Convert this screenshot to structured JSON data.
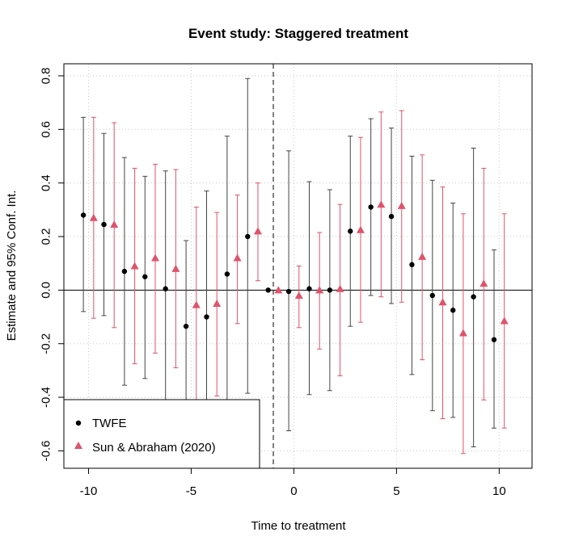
{
  "chart_data": {
    "type": "scatter",
    "title": "Event study: Staggered treatment",
    "xlabel": "Time to treatment",
    "ylabel": "Estimate and 95% Conf. Int.",
    "xlim": [
      -11.2,
      11.6
    ],
    "ylim": [
      -0.665,
      0.845
    ],
    "xticks": [
      -10,
      -5,
      0,
      5,
      10
    ],
    "xtick_labels": [
      "-10",
      "-5",
      "0",
      "5",
      "10"
    ],
    "yticks": [
      -0.6,
      -0.4,
      -0.2,
      0.0,
      0.2,
      0.4,
      0.6,
      0.8
    ],
    "ytick_labels": [
      "-0.6",
      "-0.4",
      "-0.2",
      "0.0",
      "0.2",
      "0.4",
      "0.6",
      "0.8"
    ],
    "grid": true,
    "reference_hline": 0,
    "reference_vline": -1,
    "legend_position": "bottom-left",
    "series": [
      {
        "name": "TWFE",
        "color": "#000000",
        "whisker_color": "#444444",
        "marker": "circle",
        "x": [
          -10.25,
          -9.25,
          -8.25,
          -7.25,
          -6.25,
          -5.25,
          -4.25,
          -3.25,
          -2.25,
          -1.25,
          -0.25,
          0.75,
          1.75,
          2.75,
          3.75,
          4.75,
          5.75,
          6.75,
          7.75,
          8.75,
          9.75
        ],
        "y": [
          0.28,
          0.245,
          0.07,
          0.05,
          0.005,
          -0.135,
          -0.1,
          0.06,
          0.2,
          0.0,
          -0.005,
          0.005,
          0.0,
          0.22,
          0.31,
          0.275,
          0.095,
          -0.02,
          -0.075,
          -0.025,
          -0.185
        ],
        "lower": [
          -0.08,
          -0.095,
          -0.355,
          -0.33,
          -0.44,
          -0.46,
          -0.56,
          -0.45,
          -0.385,
          null,
          -0.525,
          -0.39,
          -0.375,
          -0.135,
          -0.02,
          -0.05,
          -0.315,
          -0.45,
          -0.475,
          -0.585,
          -0.515
        ],
        "upper": [
          0.645,
          0.585,
          0.495,
          0.425,
          0.445,
          0.185,
          0.37,
          0.575,
          0.79,
          null,
          0.52,
          0.405,
          0.375,
          0.575,
          0.64,
          0.605,
          0.5,
          0.41,
          0.325,
          0.53,
          0.15
        ]
      },
      {
        "name": "Sun & Abraham (2020)",
        "color": "#df536b",
        "whisker_color": "#df536b",
        "marker": "triangle",
        "x": [
          -9.75,
          -8.75,
          -7.75,
          -6.75,
          -5.75,
          -4.75,
          -3.75,
          -2.75,
          -1.75,
          -0.75,
          0.25,
          1.25,
          2.25,
          3.25,
          4.25,
          5.25,
          6.25,
          7.25,
          8.25,
          9.25,
          10.25
        ],
        "y": [
          0.27,
          0.245,
          0.09,
          0.12,
          0.08,
          -0.055,
          -0.05,
          0.12,
          0.22,
          0.0,
          -0.02,
          0.0,
          0.005,
          0.225,
          0.32,
          0.315,
          0.125,
          -0.045,
          -0.16,
          0.025,
          -0.115
        ],
        "lower": [
          -0.105,
          -0.14,
          -0.275,
          -0.235,
          -0.29,
          -0.42,
          -0.395,
          -0.125,
          0.035,
          null,
          -0.14,
          -0.22,
          -0.32,
          -0.12,
          -0.025,
          -0.045,
          -0.26,
          -0.48,
          -0.61,
          -0.41,
          -0.515
        ],
        "upper": [
          0.645,
          0.625,
          0.455,
          0.47,
          0.45,
          0.31,
          0.29,
          0.355,
          0.4,
          null,
          0.09,
          0.215,
          0.32,
          0.57,
          0.665,
          0.67,
          0.505,
          0.385,
          0.285,
          0.455,
          0.285
        ]
      }
    ]
  }
}
